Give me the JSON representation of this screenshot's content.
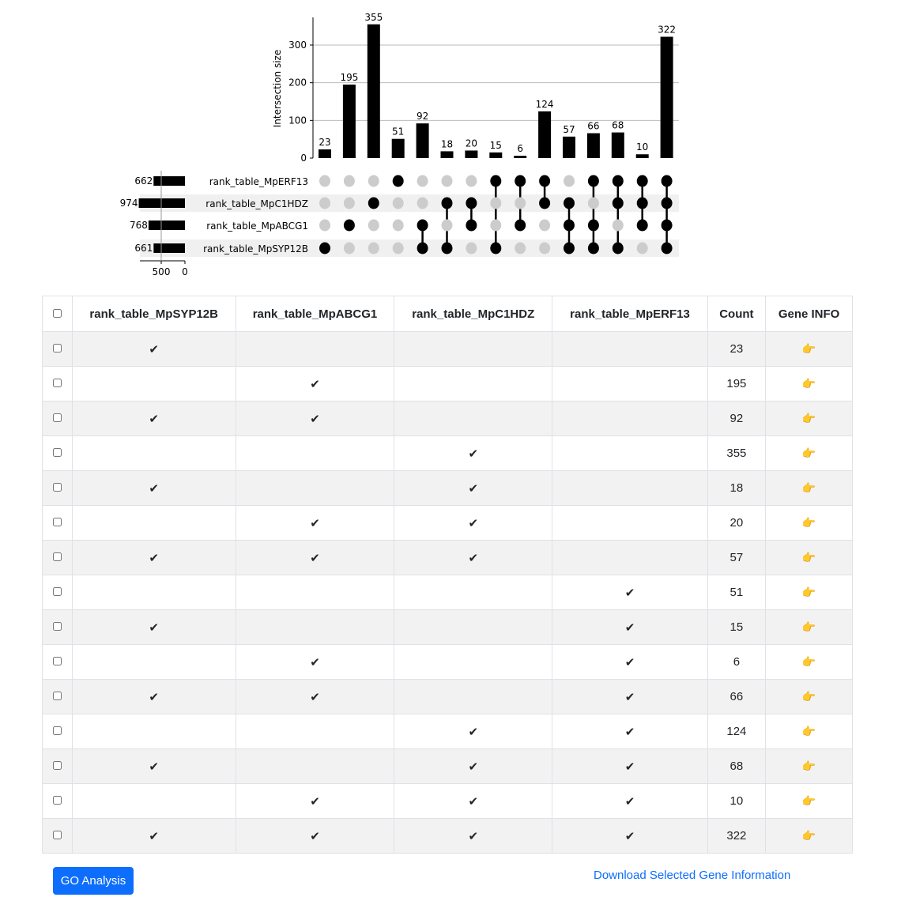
{
  "chart_data": {
    "type": "upset",
    "ylabel": "Intersection size",
    "yticks": [
      0,
      100,
      200,
      300
    ],
    "ylim": [
      0,
      370
    ],
    "sets": [
      {
        "name": "rank_table_MpERF13",
        "size": 662
      },
      {
        "name": "rank_table_MpC1HDZ",
        "size": 974
      },
      {
        "name": "rank_table_MpABCG1",
        "size": 768
      },
      {
        "name": "rank_table_MpSYP12B",
        "size": 661
      }
    ],
    "set_size_ticks": [
      500,
      0
    ],
    "intersections": [
      {
        "members": [
          "rank_table_MpSYP12B"
        ],
        "value": 23
      },
      {
        "members": [
          "rank_table_MpABCG1"
        ],
        "value": 195
      },
      {
        "members": [
          "rank_table_MpC1HDZ"
        ],
        "value": 355
      },
      {
        "members": [
          "rank_table_MpERF13"
        ],
        "value": 51
      },
      {
        "members": [
          "rank_table_MpABCG1",
          "rank_table_MpSYP12B"
        ],
        "value": 92
      },
      {
        "members": [
          "rank_table_MpC1HDZ",
          "rank_table_MpSYP12B"
        ],
        "value": 18
      },
      {
        "members": [
          "rank_table_MpC1HDZ",
          "rank_table_MpABCG1"
        ],
        "value": 20
      },
      {
        "members": [
          "rank_table_MpERF13",
          "rank_table_MpSYP12B"
        ],
        "value": 15
      },
      {
        "members": [
          "rank_table_MpERF13",
          "rank_table_MpABCG1"
        ],
        "value": 6
      },
      {
        "members": [
          "rank_table_MpERF13",
          "rank_table_MpC1HDZ"
        ],
        "value": 124
      },
      {
        "members": [
          "rank_table_MpC1HDZ",
          "rank_table_MpABCG1",
          "rank_table_MpSYP12B"
        ],
        "value": 57
      },
      {
        "members": [
          "rank_table_MpERF13",
          "rank_table_MpABCG1",
          "rank_table_MpSYP12B"
        ],
        "value": 66
      },
      {
        "members": [
          "rank_table_MpERF13",
          "rank_table_MpC1HDZ",
          "rank_table_MpSYP12B"
        ],
        "value": 68
      },
      {
        "members": [
          "rank_table_MpERF13",
          "rank_table_MpC1HDZ",
          "rank_table_MpABCG1"
        ],
        "value": 10
      },
      {
        "members": [
          "rank_table_MpERF13",
          "rank_table_MpC1HDZ",
          "rank_table_MpABCG1",
          "rank_table_MpSYP12B"
        ],
        "value": 322
      }
    ]
  },
  "table": {
    "headers": [
      "rank_table_MpSYP12B",
      "rank_table_MpABCG1",
      "rank_table_MpC1HDZ",
      "rank_table_MpERF13",
      "Count",
      "Gene INFO"
    ],
    "check_mark": "✔",
    "info_icon": "👉",
    "rows": [
      {
        "sets": [
          1,
          0,
          0,
          0
        ],
        "count": "23"
      },
      {
        "sets": [
          0,
          1,
          0,
          0
        ],
        "count": "195"
      },
      {
        "sets": [
          1,
          1,
          0,
          0
        ],
        "count": "92"
      },
      {
        "sets": [
          0,
          0,
          1,
          0
        ],
        "count": "355"
      },
      {
        "sets": [
          1,
          0,
          1,
          0
        ],
        "count": "18"
      },
      {
        "sets": [
          0,
          1,
          1,
          0
        ],
        "count": "20"
      },
      {
        "sets": [
          1,
          1,
          1,
          0
        ],
        "count": "57"
      },
      {
        "sets": [
          0,
          0,
          0,
          1
        ],
        "count": "51"
      },
      {
        "sets": [
          1,
          0,
          0,
          1
        ],
        "count": "15"
      },
      {
        "sets": [
          0,
          1,
          0,
          1
        ],
        "count": "6"
      },
      {
        "sets": [
          1,
          1,
          0,
          1
        ],
        "count": "66"
      },
      {
        "sets": [
          0,
          0,
          1,
          1
        ],
        "count": "124"
      },
      {
        "sets": [
          1,
          0,
          1,
          1
        ],
        "count": "68"
      },
      {
        "sets": [
          0,
          1,
          1,
          1
        ],
        "count": "10"
      },
      {
        "sets": [
          1,
          1,
          1,
          1
        ],
        "count": "322"
      }
    ]
  },
  "actions": {
    "go_label": "GO Analysis",
    "download_label": "Download Selected Gene Information"
  },
  "colors": {
    "primary": "#0d6efd",
    "bar": "#000000",
    "inactive_dot": "#cccccc",
    "stripe": "#f2f2f2"
  }
}
